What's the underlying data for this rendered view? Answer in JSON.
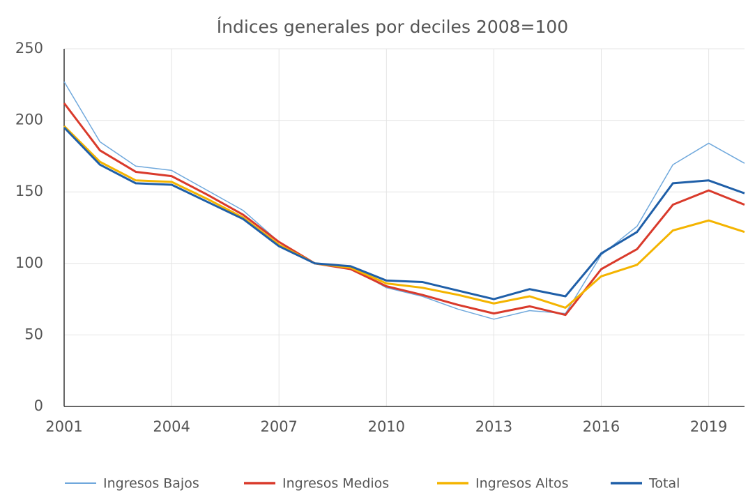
{
  "chart_data": {
    "type": "line",
    "title": "Índices generales por deciles 2008=100",
    "x": [
      2001,
      2002,
      2003,
      2004,
      2005,
      2006,
      2007,
      2008,
      2009,
      2010,
      2011,
      2012,
      2013,
      2014,
      2015,
      2016,
      2017,
      2018,
      2019,
      2020
    ],
    "series": [
      {
        "name": "Ingresos Bajos",
        "color": "#6fa8dc",
        "values": [
          227,
          185,
          168,
          165,
          151,
          137,
          115,
          100,
          97,
          83,
          77,
          68,
          61,
          67,
          65,
          106,
          126,
          169,
          184,
          170
        ]
      },
      {
        "name": "Ingresos Medios",
        "color": "#d93a2b",
        "values": [
          212,
          179,
          164,
          161,
          148,
          134,
          115,
          100,
          96,
          84,
          78,
          71,
          65,
          70,
          64,
          96,
          110,
          141,
          151,
          141
        ]
      },
      {
        "name": "Ingresos Altos",
        "color": "#f4b400",
        "values": [
          196,
          171,
          158,
          157,
          145,
          132,
          113,
          100,
          97,
          86,
          83,
          78,
          72,
          77,
          69,
          91,
          99,
          123,
          130,
          122
        ]
      },
      {
        "name": "Total",
        "color": "#1f5fa8",
        "values": [
          195,
          169,
          156,
          155,
          143,
          131,
          112,
          100,
          98,
          88,
          87,
          81,
          75,
          82,
          77,
          107,
          122,
          156,
          158,
          149
        ]
      }
    ],
    "xlim": [
      2001,
      2020
    ],
    "xticks": [
      2001,
      2004,
      2007,
      2010,
      2013,
      2016,
      2019
    ],
    "ylim": [
      0,
      250
    ],
    "yticks": [
      0,
      50,
      100,
      150,
      200,
      250
    ],
    "grid": true
  }
}
